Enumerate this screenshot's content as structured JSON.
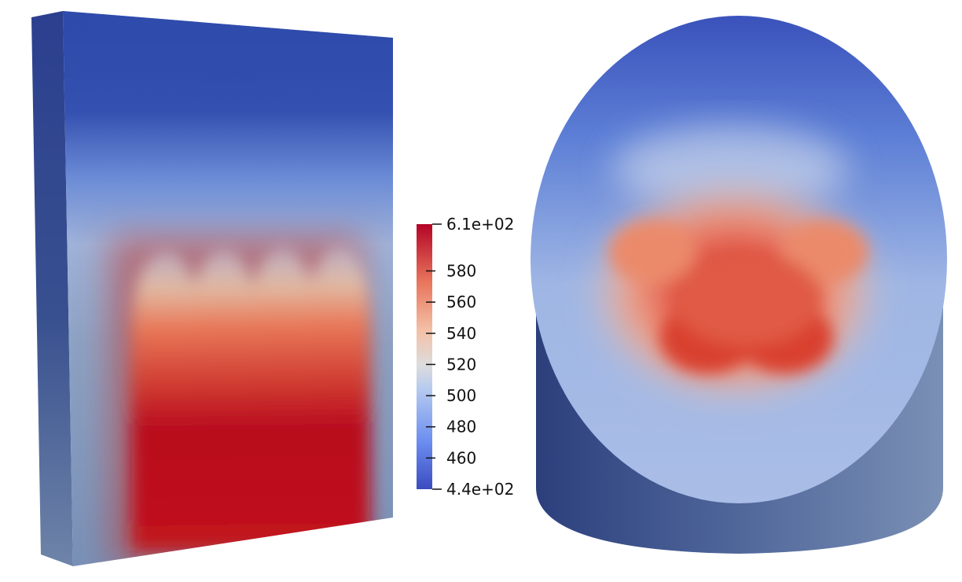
{
  "colorbar": {
    "max_label": "6.1e+02",
    "min_label": "4.4e+02",
    "range": [
      440,
      610
    ],
    "ticks": [
      {
        "value": 580,
        "label": "580"
      },
      {
        "value": 560,
        "label": "560"
      },
      {
        "value": 540,
        "label": "540"
      },
      {
        "value": 520,
        "label": "520"
      },
      {
        "value": 500,
        "label": "500"
      },
      {
        "value": 480,
        "label": "480"
      },
      {
        "value": 460,
        "label": "460"
      }
    ],
    "colormap": [
      "#3b4cc0",
      "#7a9df8",
      "#c8d7ee",
      "#dddcdc",
      "#f4c2a8",
      "#e9785d",
      "#b40426"
    ]
  },
  "left_model": {
    "name": "slab-model"
  },
  "right_model": {
    "name": "cylinder-model"
  }
}
